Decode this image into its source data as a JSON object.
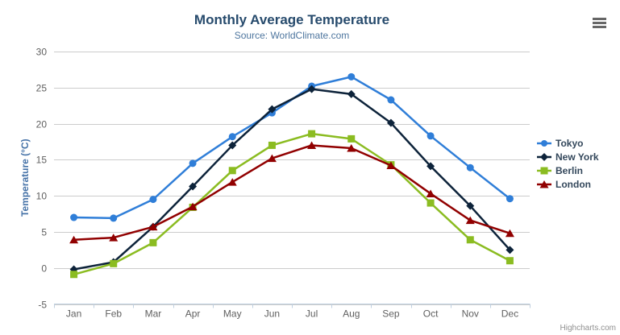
{
  "header": {
    "title": "Monthly Average Temperature",
    "subtitle": "Source: WorldClimate.com"
  },
  "credit": "Highcharts.com",
  "menu_icon": "hamburger-icon",
  "colors": {
    "title": "#274b6d",
    "subtitle": "#4d759e",
    "axis_title": "#4572a7",
    "axis_labels": "#606060",
    "grid_line": "#cccccc",
    "axis_line": "#c0d0e0",
    "legend_text": "#33475b"
  },
  "chart_data": {
    "type": "line",
    "title": "Monthly Average Temperature",
    "subtitle": "Source: WorldClimate.com",
    "categories": [
      "Jan",
      "Feb",
      "Mar",
      "Apr",
      "May",
      "Jun",
      "Jul",
      "Aug",
      "Sep",
      "Oct",
      "Nov",
      "Dec"
    ],
    "xlabel": "",
    "ylabel": "Temperature (°C)",
    "ylim": [
      -5,
      30
    ],
    "ytick_interval": 5,
    "yticks": [
      -5,
      0,
      5,
      10,
      15,
      20,
      25,
      30
    ],
    "grid": true,
    "legend_position": "right",
    "series": [
      {
        "name": "Tokyo",
        "color": "#2f7ed8",
        "marker": "circle",
        "values": [
          7.0,
          6.9,
          9.5,
          14.5,
          18.2,
          21.5,
          25.2,
          26.5,
          23.3,
          18.3,
          13.9,
          9.6
        ]
      },
      {
        "name": "New York",
        "color": "#0d233a",
        "marker": "diamond",
        "values": [
          -0.2,
          0.8,
          5.7,
          11.3,
          17.0,
          22.0,
          24.8,
          24.1,
          20.1,
          14.1,
          8.6,
          2.5
        ]
      },
      {
        "name": "Berlin",
        "color": "#8bbc21",
        "marker": "square",
        "values": [
          -0.9,
          0.6,
          3.5,
          8.4,
          13.5,
          17.0,
          18.6,
          17.9,
          14.3,
          9.0,
          3.9,
          1.0
        ]
      },
      {
        "name": "London",
        "color": "#910000",
        "marker": "triangle",
        "values": [
          3.9,
          4.2,
          5.7,
          8.5,
          11.9,
          15.2,
          17.0,
          16.6,
          14.2,
          10.3,
          6.6,
          4.8
        ]
      }
    ]
  }
}
